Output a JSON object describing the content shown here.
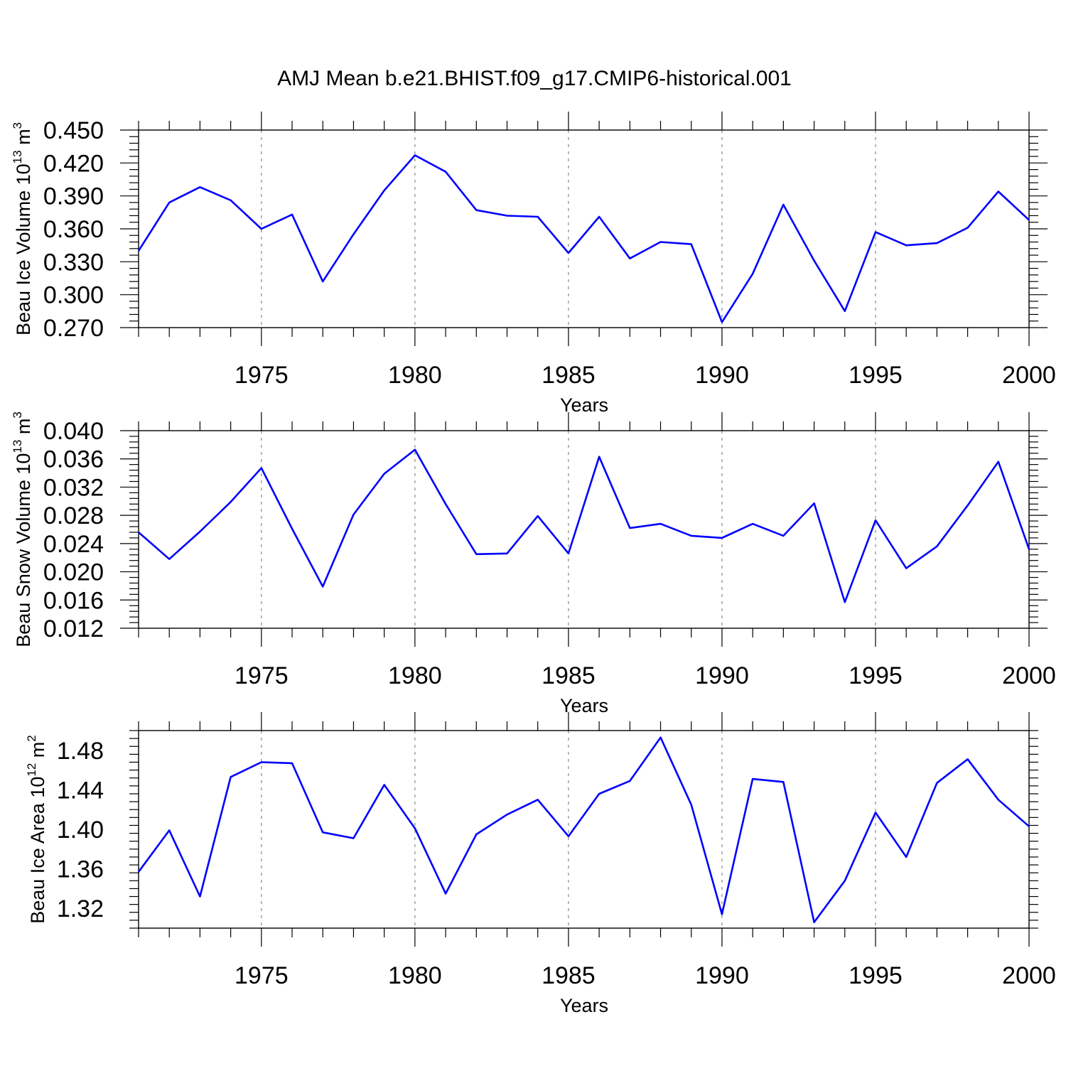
{
  "title": "AMJ Mean b.e21.BHIST.f09_g17.CMIP6-historical.001",
  "chart_data": [
    {
      "type": "line",
      "ylabel": {
        "prefix": "Beau Ice Volume 10",
        "exp": "13",
        "unit": " m",
        "unit_exp": "3"
      },
      "xlabel": "Years",
      "xlim": [
        1971,
        2000
      ],
      "ylim": [
        0.27,
        0.45
      ],
      "yticks": [
        "0.270",
        "0.300",
        "0.330",
        "0.360",
        "0.390",
        "0.420",
        "0.450"
      ],
      "xticks": [
        "1975",
        "1980",
        "1985",
        "1990",
        "1995",
        "2000"
      ],
      "grid": "vertical dashed at 5-year ticks",
      "color": "#0000ff",
      "x": [
        1971,
        1972,
        1973,
        1974,
        1975,
        1976,
        1977,
        1978,
        1979,
        1980,
        1981,
        1982,
        1983,
        1984,
        1985,
        1986,
        1987,
        1988,
        1989,
        1990,
        1991,
        1992,
        1993,
        1994,
        1995,
        1996,
        1997,
        1998,
        1999,
        2000
      ],
      "values": [
        0.34,
        0.384,
        0.398,
        0.386,
        0.36,
        0.373,
        0.312,
        0.355,
        0.395,
        0.427,
        0.412,
        0.377,
        0.372,
        0.371,
        0.338,
        0.371,
        0.333,
        0.348,
        0.346,
        0.275,
        0.319,
        0.382,
        0.331,
        0.285,
        0.357,
        0.345,
        0.347,
        0.361,
        0.394,
        0.368
      ]
    },
    {
      "type": "line",
      "ylabel": {
        "prefix": "Beau Snow Volume 10",
        "exp": "13",
        "unit": " m",
        "unit_exp": "3"
      },
      "xlabel": "Years",
      "xlim": [
        1971,
        2000
      ],
      "ylim": [
        0.012,
        0.04
      ],
      "yticks": [
        "0.012",
        "0.016",
        "0.020",
        "0.024",
        "0.028",
        "0.032",
        "0.036",
        "0.040"
      ],
      "xticks": [
        "1975",
        "1980",
        "1985",
        "1990",
        "1995",
        "2000"
      ],
      "grid": "vertical dashed at 5-year ticks",
      "color": "#0000ff",
      "x": [
        1971,
        1972,
        1973,
        1974,
        1975,
        1976,
        1977,
        1978,
        1979,
        1980,
        1981,
        1982,
        1983,
        1984,
        1985,
        1986,
        1987,
        1988,
        1989,
        1990,
        1991,
        1992,
        1993,
        1994,
        1995,
        1996,
        1997,
        1998,
        1999,
        2000
      ],
      "values": [
        0.0256,
        0.0218,
        0.0257,
        0.0299,
        0.0347,
        0.0261,
        0.0179,
        0.0281,
        0.0339,
        0.0373,
        0.0296,
        0.0225,
        0.0226,
        0.0279,
        0.0226,
        0.0363,
        0.0262,
        0.0268,
        0.0251,
        0.0248,
        0.0268,
        0.0251,
        0.0297,
        0.0157,
        0.0273,
        0.0205,
        0.0236,
        0.0294,
        0.0356,
        0.0232
      ]
    },
    {
      "type": "line",
      "ylabel": {
        "prefix": "Beau Ice Area 10",
        "exp": "12",
        "unit": " m",
        "unit_exp": "2"
      },
      "xlabel": "Years",
      "xlim": [
        1971,
        2000
      ],
      "ylim": [
        1.3,
        1.5
      ],
      "yticks": [
        "1.32",
        "1.36",
        "1.40",
        "1.44",
        "1.48"
      ],
      "xticks": [
        "1975",
        "1980",
        "1985",
        "1990",
        "1995",
        "2000"
      ],
      "grid": "vertical dashed at 5-year ticks",
      "color": "#0000ff",
      "x": [
        1971,
        1972,
        1973,
        1974,
        1975,
        1976,
        1977,
        1978,
        1979,
        1980,
        1981,
        1982,
        1983,
        1984,
        1985,
        1986,
        1987,
        1988,
        1989,
        1990,
        1991,
        1992,
        1993,
        1994,
        1995,
        1996,
        1997,
        1998,
        1999,
        2000
      ],
      "values": [
        1.357,
        1.399,
        1.332,
        1.453,
        1.468,
        1.467,
        1.397,
        1.391,
        1.445,
        1.401,
        1.335,
        1.395,
        1.415,
        1.43,
        1.393,
        1.436,
        1.449,
        1.493,
        1.425,
        1.314,
        1.451,
        1.448,
        1.306,
        1.348,
        1.417,
        1.372,
        1.447,
        1.471,
        1.43,
        1.403
      ]
    }
  ]
}
